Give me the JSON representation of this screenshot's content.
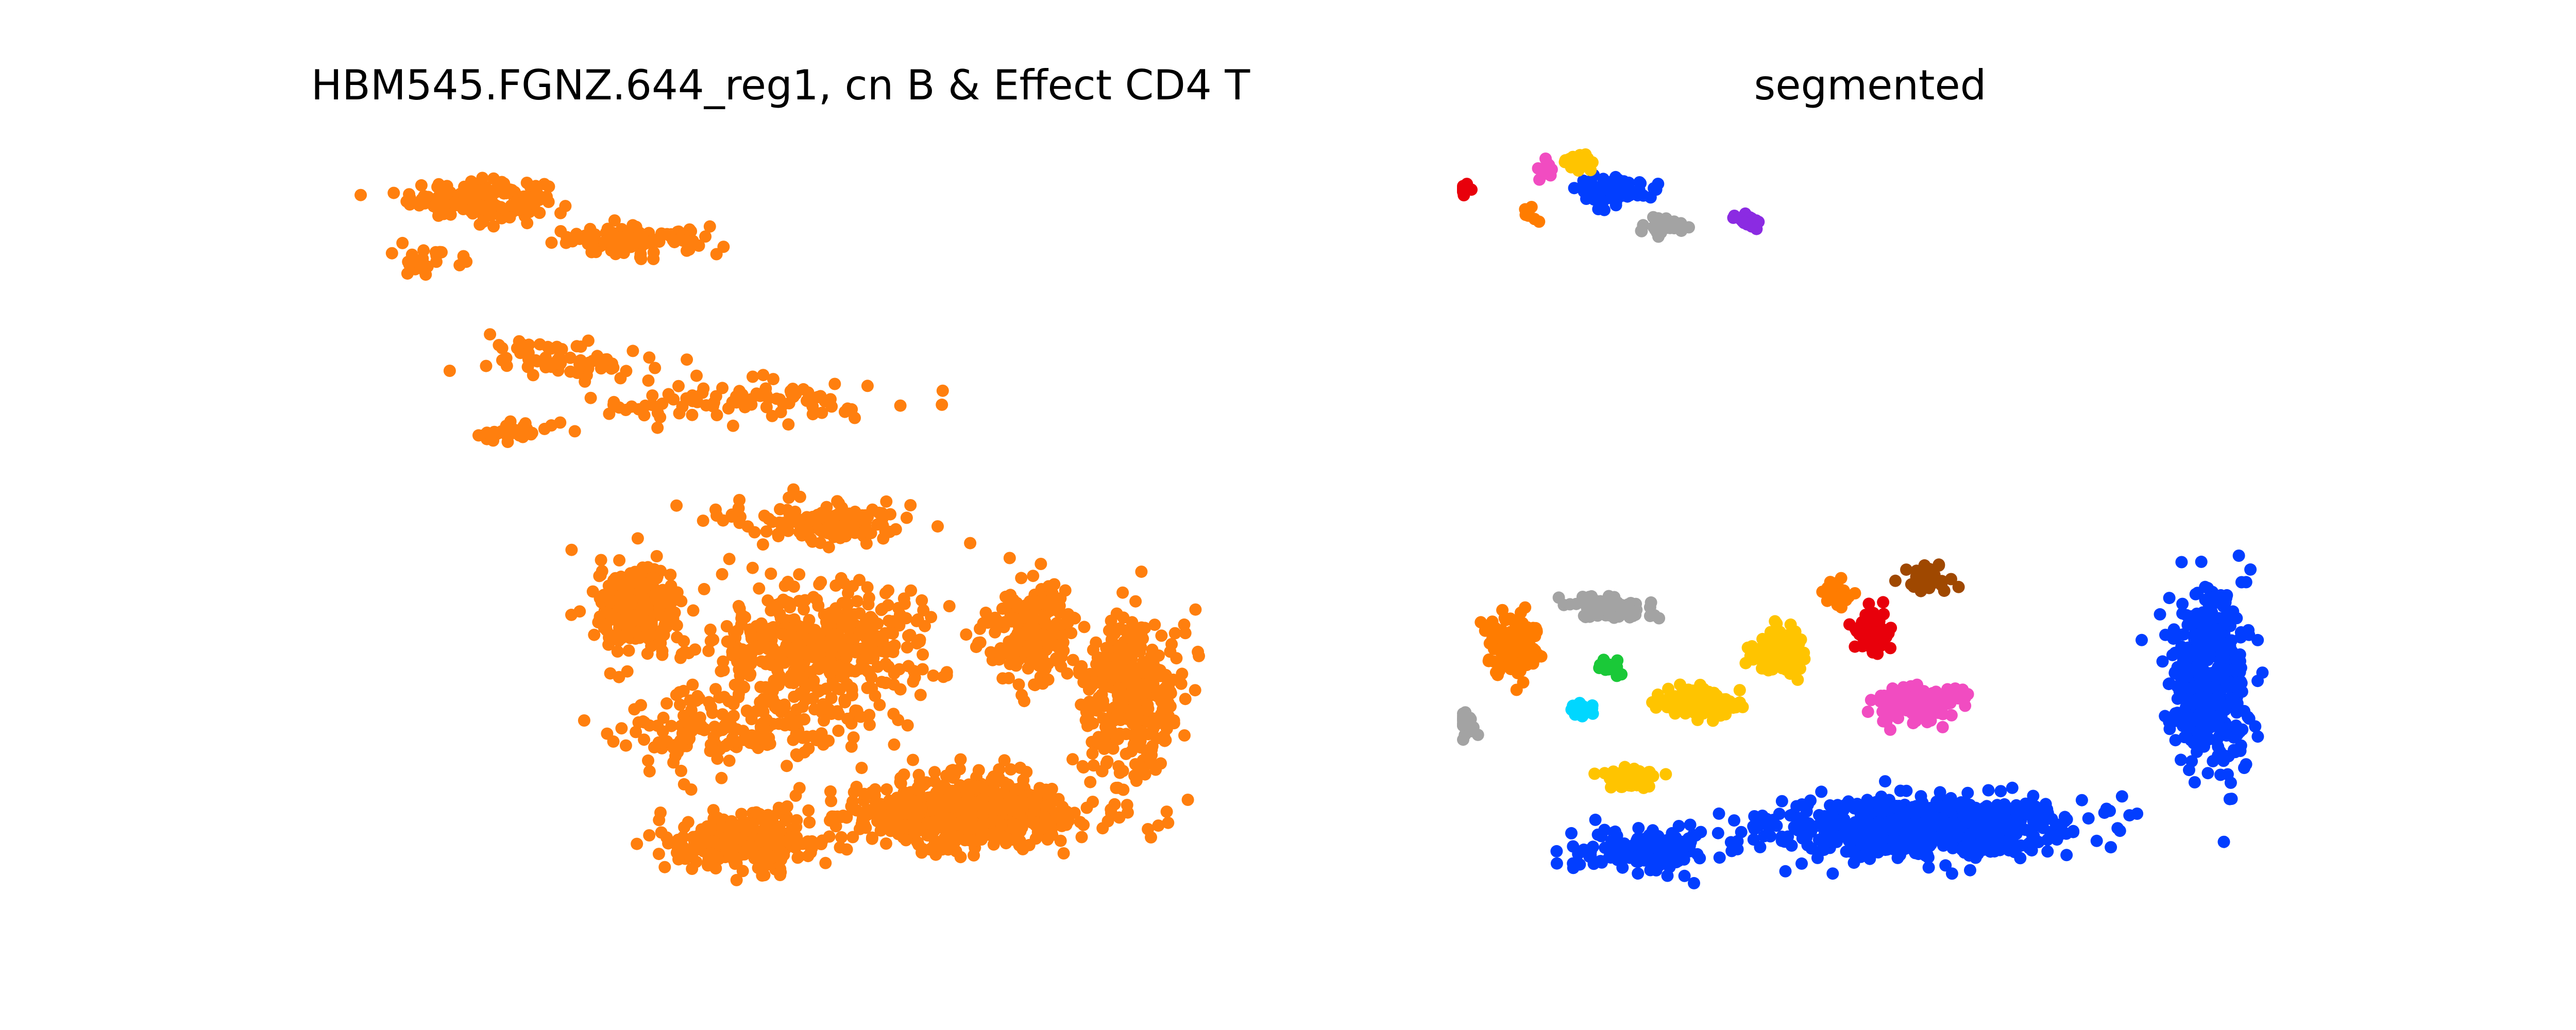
{
  "chart_data": [
    {
      "type": "scatter",
      "title": "HBM545.FGNZ.644_reg1, cn B & Effect CD4 T",
      "axes": "off",
      "grid": false,
      "legend": "none",
      "series": [
        {
          "color": "#ff7f0e",
          "clusters": [
            {
              "x": 0.14,
              "y": 0.94,
              "sx": 0.08,
              "sy": 0.025,
              "n": 180
            },
            {
              "x": 0.33,
              "y": 0.88,
              "sx": 0.1,
              "sy": 0.02,
              "n": 90
            },
            {
              "x": 0.08,
              "y": 0.86,
              "sx": 0.04,
              "sy": 0.03,
              "n": 25
            },
            {
              "x": 0.25,
              "y": 0.72,
              "sx": 0.1,
              "sy": 0.025,
              "n": 70
            },
            {
              "x": 0.45,
              "y": 0.66,
              "sx": 0.18,
              "sy": 0.03,
              "n": 90
            },
            {
              "x": 0.18,
              "y": 0.62,
              "sx": 0.06,
              "sy": 0.02,
              "n": 30
            },
            {
              "x": 0.55,
              "y": 0.5,
              "sx": 0.12,
              "sy": 0.03,
              "n": 120
            },
            {
              "x": 0.33,
              "y": 0.38,
              "sx": 0.05,
              "sy": 0.06,
              "n": 260
            },
            {
              "x": 0.55,
              "y": 0.33,
              "sx": 0.14,
              "sy": 0.08,
              "n": 420
            },
            {
              "x": 0.8,
              "y": 0.35,
              "sx": 0.05,
              "sy": 0.06,
              "n": 200
            },
            {
              "x": 0.92,
              "y": 0.26,
              "sx": 0.06,
              "sy": 0.12,
              "n": 320
            },
            {
              "x": 0.72,
              "y": 0.1,
              "sx": 0.14,
              "sy": 0.05,
              "n": 600
            },
            {
              "x": 0.45,
              "y": 0.06,
              "sx": 0.1,
              "sy": 0.04,
              "n": 260
            },
            {
              "x": 0.45,
              "y": 0.22,
              "sx": 0.16,
              "sy": 0.05,
              "n": 200
            }
          ]
        }
      ]
    },
    {
      "type": "scatter",
      "title": "segmented",
      "axes": "off",
      "grid": false,
      "legend": "none",
      "palette": [
        "#023eff",
        "#ff7c00",
        "#1ac938",
        "#e8000b",
        "#8b2be2",
        "#9f4800",
        "#f14cc1",
        "#a3a3a3",
        "#ffc400",
        "#00d7ff"
      ],
      "series": [
        {
          "color": "#023eff",
          "clusters": [
            {
              "x": 0.55,
              "y": 0.08,
              "sx": 0.18,
              "sy": 0.04,
              "n": 700
            },
            {
              "x": 0.9,
              "y": 0.28,
              "sx": 0.05,
              "sy": 0.12,
              "n": 450
            },
            {
              "x": 0.22,
              "y": 0.05,
              "sx": 0.08,
              "sy": 0.03,
              "n": 150
            },
            {
              "x": 0.18,
              "y": 0.95,
              "sx": 0.05,
              "sy": 0.02,
              "n": 60
            }
          ]
        },
        {
          "color": "#ff7c00",
          "clusters": [
            {
              "x": 0.06,
              "y": 0.33,
              "sx": 0.03,
              "sy": 0.04,
              "n": 140
            },
            {
              "x": 0.08,
              "y": 0.92,
              "sx": 0.01,
              "sy": 0.01,
              "n": 10
            },
            {
              "x": 0.45,
              "y": 0.4,
              "sx": 0.02,
              "sy": 0.02,
              "n": 20
            }
          ]
        },
        {
          "color": "#ffc400",
          "clusters": [
            {
              "x": 0.28,
              "y": 0.25,
              "sx": 0.05,
              "sy": 0.02,
              "n": 120
            },
            {
              "x": 0.38,
              "y": 0.32,
              "sx": 0.03,
              "sy": 0.03,
              "n": 90
            },
            {
              "x": 0.2,
              "y": 0.15,
              "sx": 0.03,
              "sy": 0.015,
              "n": 60
            },
            {
              "x": 0.14,
              "y": 0.99,
              "sx": 0.02,
              "sy": 0.01,
              "n": 25
            }
          ]
        },
        {
          "color": "#f14cc1",
          "clusters": [
            {
              "x": 0.55,
              "y": 0.25,
              "sx": 0.05,
              "sy": 0.025,
              "n": 130
            },
            {
              "x": 0.1,
              "y": 0.98,
              "sx": 0.01,
              "sy": 0.01,
              "n": 15
            }
          ]
        },
        {
          "color": "#a3a3a3",
          "clusters": [
            {
              "x": 0.18,
              "y": 0.38,
              "sx": 0.05,
              "sy": 0.02,
              "n": 80
            },
            {
              "x": 0.24,
              "y": 0.9,
              "sx": 0.03,
              "sy": 0.01,
              "n": 30
            },
            {
              "x": 0.0,
              "y": 0.22,
              "sx": 0.02,
              "sy": 0.02,
              "n": 25
            }
          ]
        },
        {
          "color": "#e8000b",
          "clusters": [
            {
              "x": 0.49,
              "y": 0.35,
              "sx": 0.02,
              "sy": 0.03,
              "n": 70
            },
            {
              "x": 0.0,
              "y": 0.95,
              "sx": 0.01,
              "sy": 0.01,
              "n": 12
            }
          ]
        },
        {
          "color": "#8b2be2",
          "clusters": [
            {
              "x": 0.34,
              "y": 0.91,
              "sx": 0.015,
              "sy": 0.01,
              "n": 25
            }
          ]
        },
        {
          "color": "#9f4800",
          "clusters": [
            {
              "x": 0.56,
              "y": 0.42,
              "sx": 0.03,
              "sy": 0.02,
              "n": 40
            }
          ]
        },
        {
          "color": "#1ac938",
          "clusters": [
            {
              "x": 0.18,
              "y": 0.3,
              "sx": 0.015,
              "sy": 0.01,
              "n": 20
            }
          ]
        },
        {
          "color": "#00d7ff",
          "clusters": [
            {
              "x": 0.14,
              "y": 0.24,
              "sx": 0.015,
              "sy": 0.01,
              "n": 20
            }
          ]
        }
      ]
    }
  ]
}
